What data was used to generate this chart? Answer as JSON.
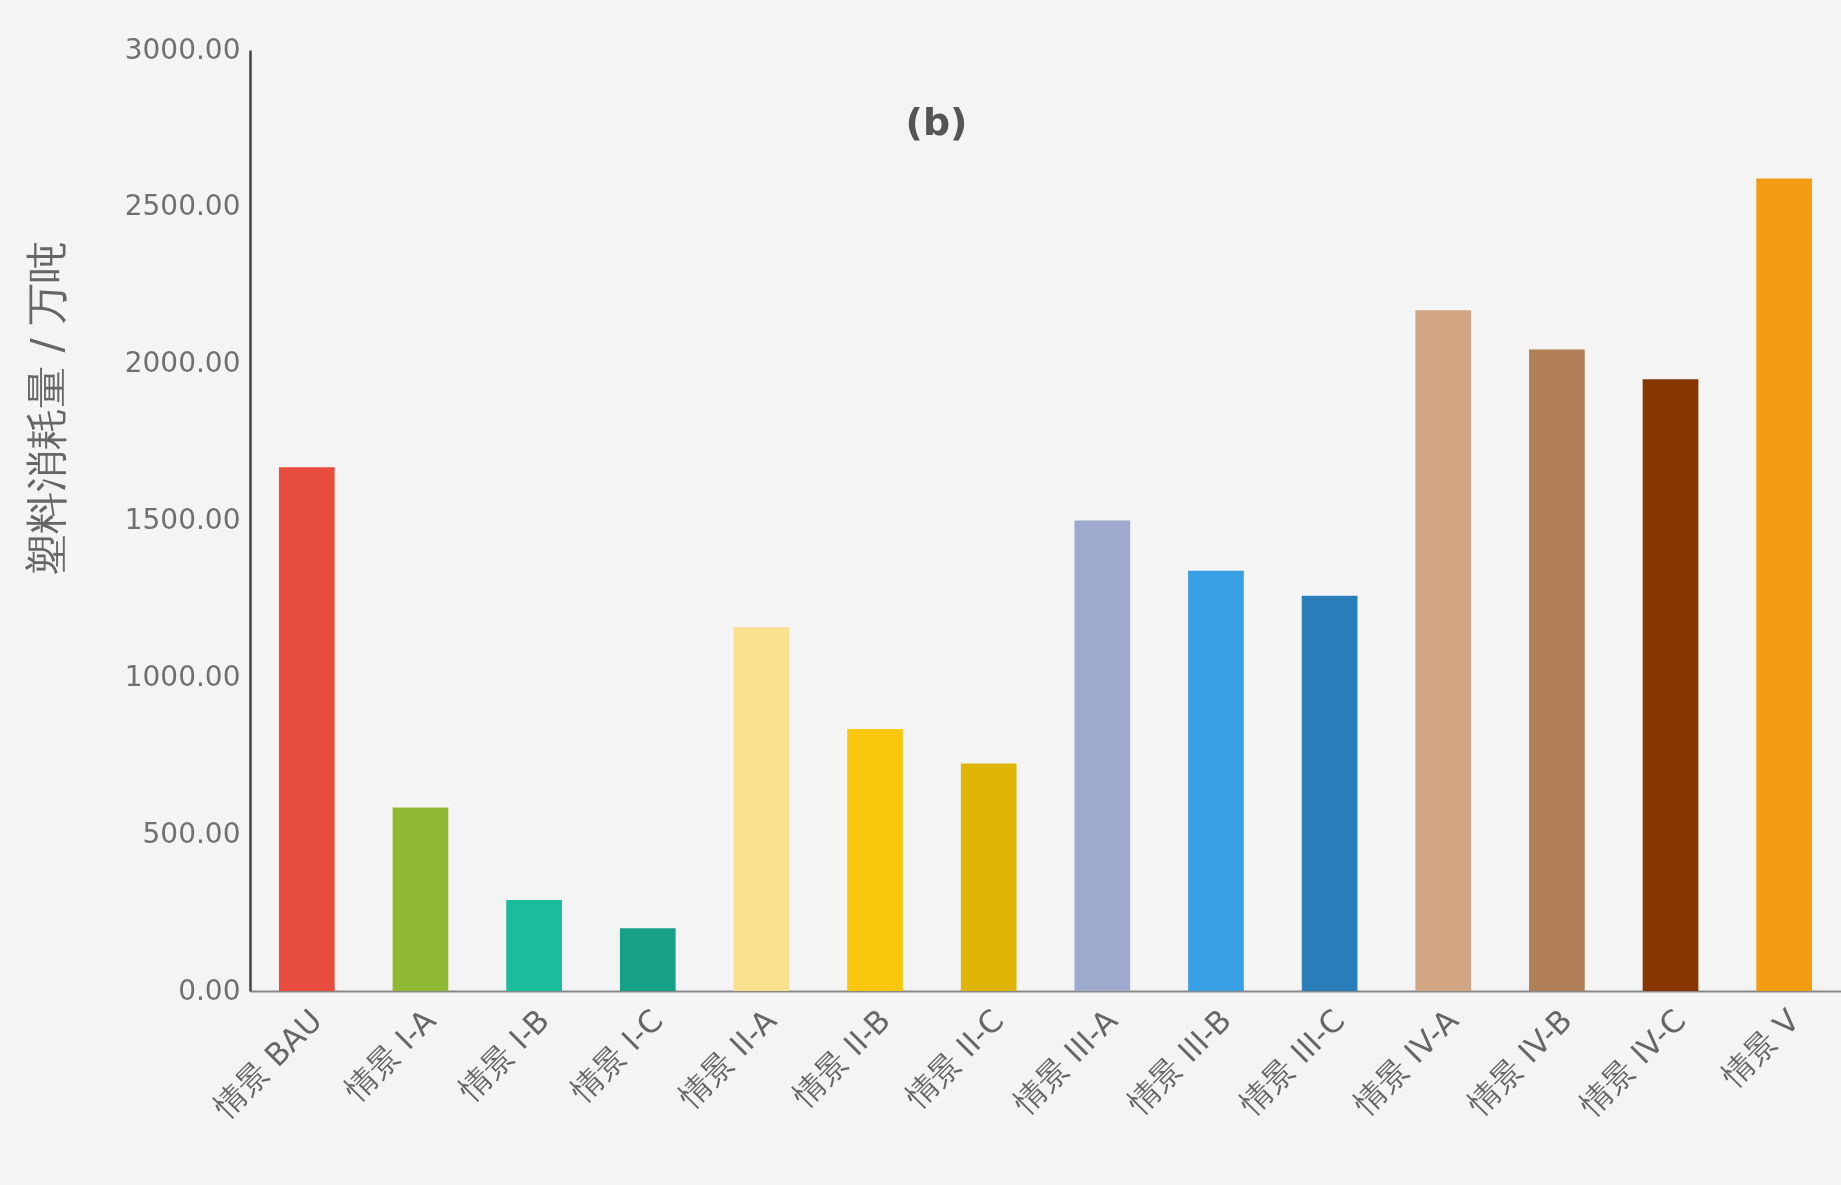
{
  "chart_data": {
    "type": "bar",
    "title": "(b)",
    "ylabel": "塑料消耗量 / 万吨",
    "categories": [
      "情景 BAU",
      "情景 I-A",
      "情景 I-B",
      "情景 I-C",
      "情景 II-A",
      "情景 II-B",
      "情景 II-C",
      "情景 III-A",
      "情景 III-B",
      "情景 III-C",
      "情景 IV-A",
      "情景 IV-B",
      "情景 IV-C",
      "情景 V"
    ],
    "values": [
      1670,
      585,
      290,
      200,
      1160,
      835,
      725,
      1500,
      1340,
      1260,
      2170,
      2045,
      1950,
      2590
    ],
    "colors": [
      "#e74c3c",
      "#8fb935",
      "#1abc9c",
      "#16a085",
      "#f9e08e",
      "#f9c80e",
      "#dfb507",
      "#9daacd",
      "#3aa0e5",
      "#2a7fba",
      "#d2a683",
      "#b07f58",
      "#873600",
      "#f39c12"
    ],
    "ylim": [
      0,
      3000
    ],
    "yticks": [
      {
        "value": 0,
        "label": "0.00"
      },
      {
        "value": 500,
        "label": "500.00"
      },
      {
        "value": 1000,
        "label": "1000.00"
      },
      {
        "value": 1500,
        "label": "1500.00"
      },
      {
        "value": 2000,
        "label": "2000.00"
      },
      {
        "value": 2500,
        "label": "2500.00"
      },
      {
        "value": 3000,
        "label": "3000.00"
      }
    ]
  }
}
